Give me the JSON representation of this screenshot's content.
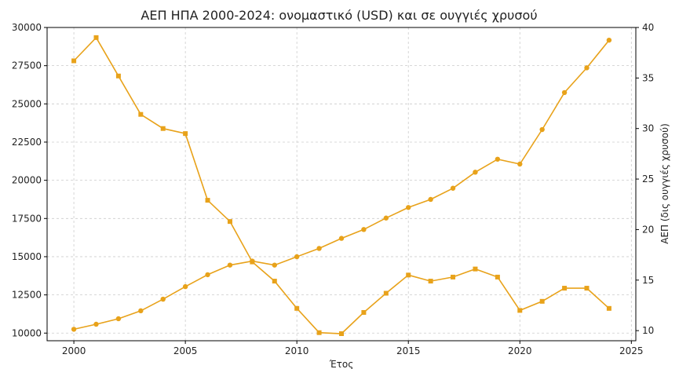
{
  "chart_data": {
    "type": "line",
    "title": "ΑΕΠ ΗΠΑ 2000-2024: ονομαστικό (USD) και σε ουγγιές χρυσού",
    "xlabel": "Έτος",
    "ylabel_left": "",
    "ylabel_right": "ΑΕΠ (δις ουγγιές χρυσού)",
    "xlim": [
      1998.8,
      2025.2
    ],
    "ylim_left": [
      9500,
      30000
    ],
    "ylim_right": [
      9.0,
      40.0
    ],
    "x_ticks": [
      2000,
      2005,
      2010,
      2015,
      2020,
      2025
    ],
    "y_left_ticks": [
      10000,
      12500,
      15000,
      17500,
      20000,
      22500,
      25000,
      27500,
      30000
    ],
    "y_right_ticks": [
      10,
      15,
      20,
      25,
      30,
      35,
      40
    ],
    "grid": true,
    "color": "#e8a21a",
    "x": [
      2000,
      2001,
      2002,
      2003,
      2004,
      2005,
      2006,
      2007,
      2008,
      2009,
      2010,
      2011,
      2012,
      2013,
      2014,
      2015,
      2016,
      2017,
      2018,
      2019,
      2020,
      2021,
      2022,
      2023,
      2024
    ],
    "series": [
      {
        "axis": "left",
        "marker": "circle",
        "values": [
          10250,
          10580,
          10940,
          11460,
          12220,
          13040,
          13820,
          14450,
          14710,
          14450,
          15000,
          15540,
          16200,
          16780,
          17530,
          18220,
          18750,
          19480,
          20530,
          21380,
          21060,
          23320,
          25740,
          27360,
          29170
        ]
      },
      {
        "axis": "right",
        "marker": "square",
        "values": [
          36.7,
          39.0,
          35.2,
          31.4,
          30.0,
          29.5,
          22.9,
          20.8,
          16.8,
          14.9,
          12.2,
          9.8,
          9.7,
          11.8,
          13.7,
          15.5,
          14.9,
          15.3,
          16.1,
          15.3,
          12.0,
          12.9,
          14.2,
          14.2,
          12.2
        ]
      }
    ]
  }
}
